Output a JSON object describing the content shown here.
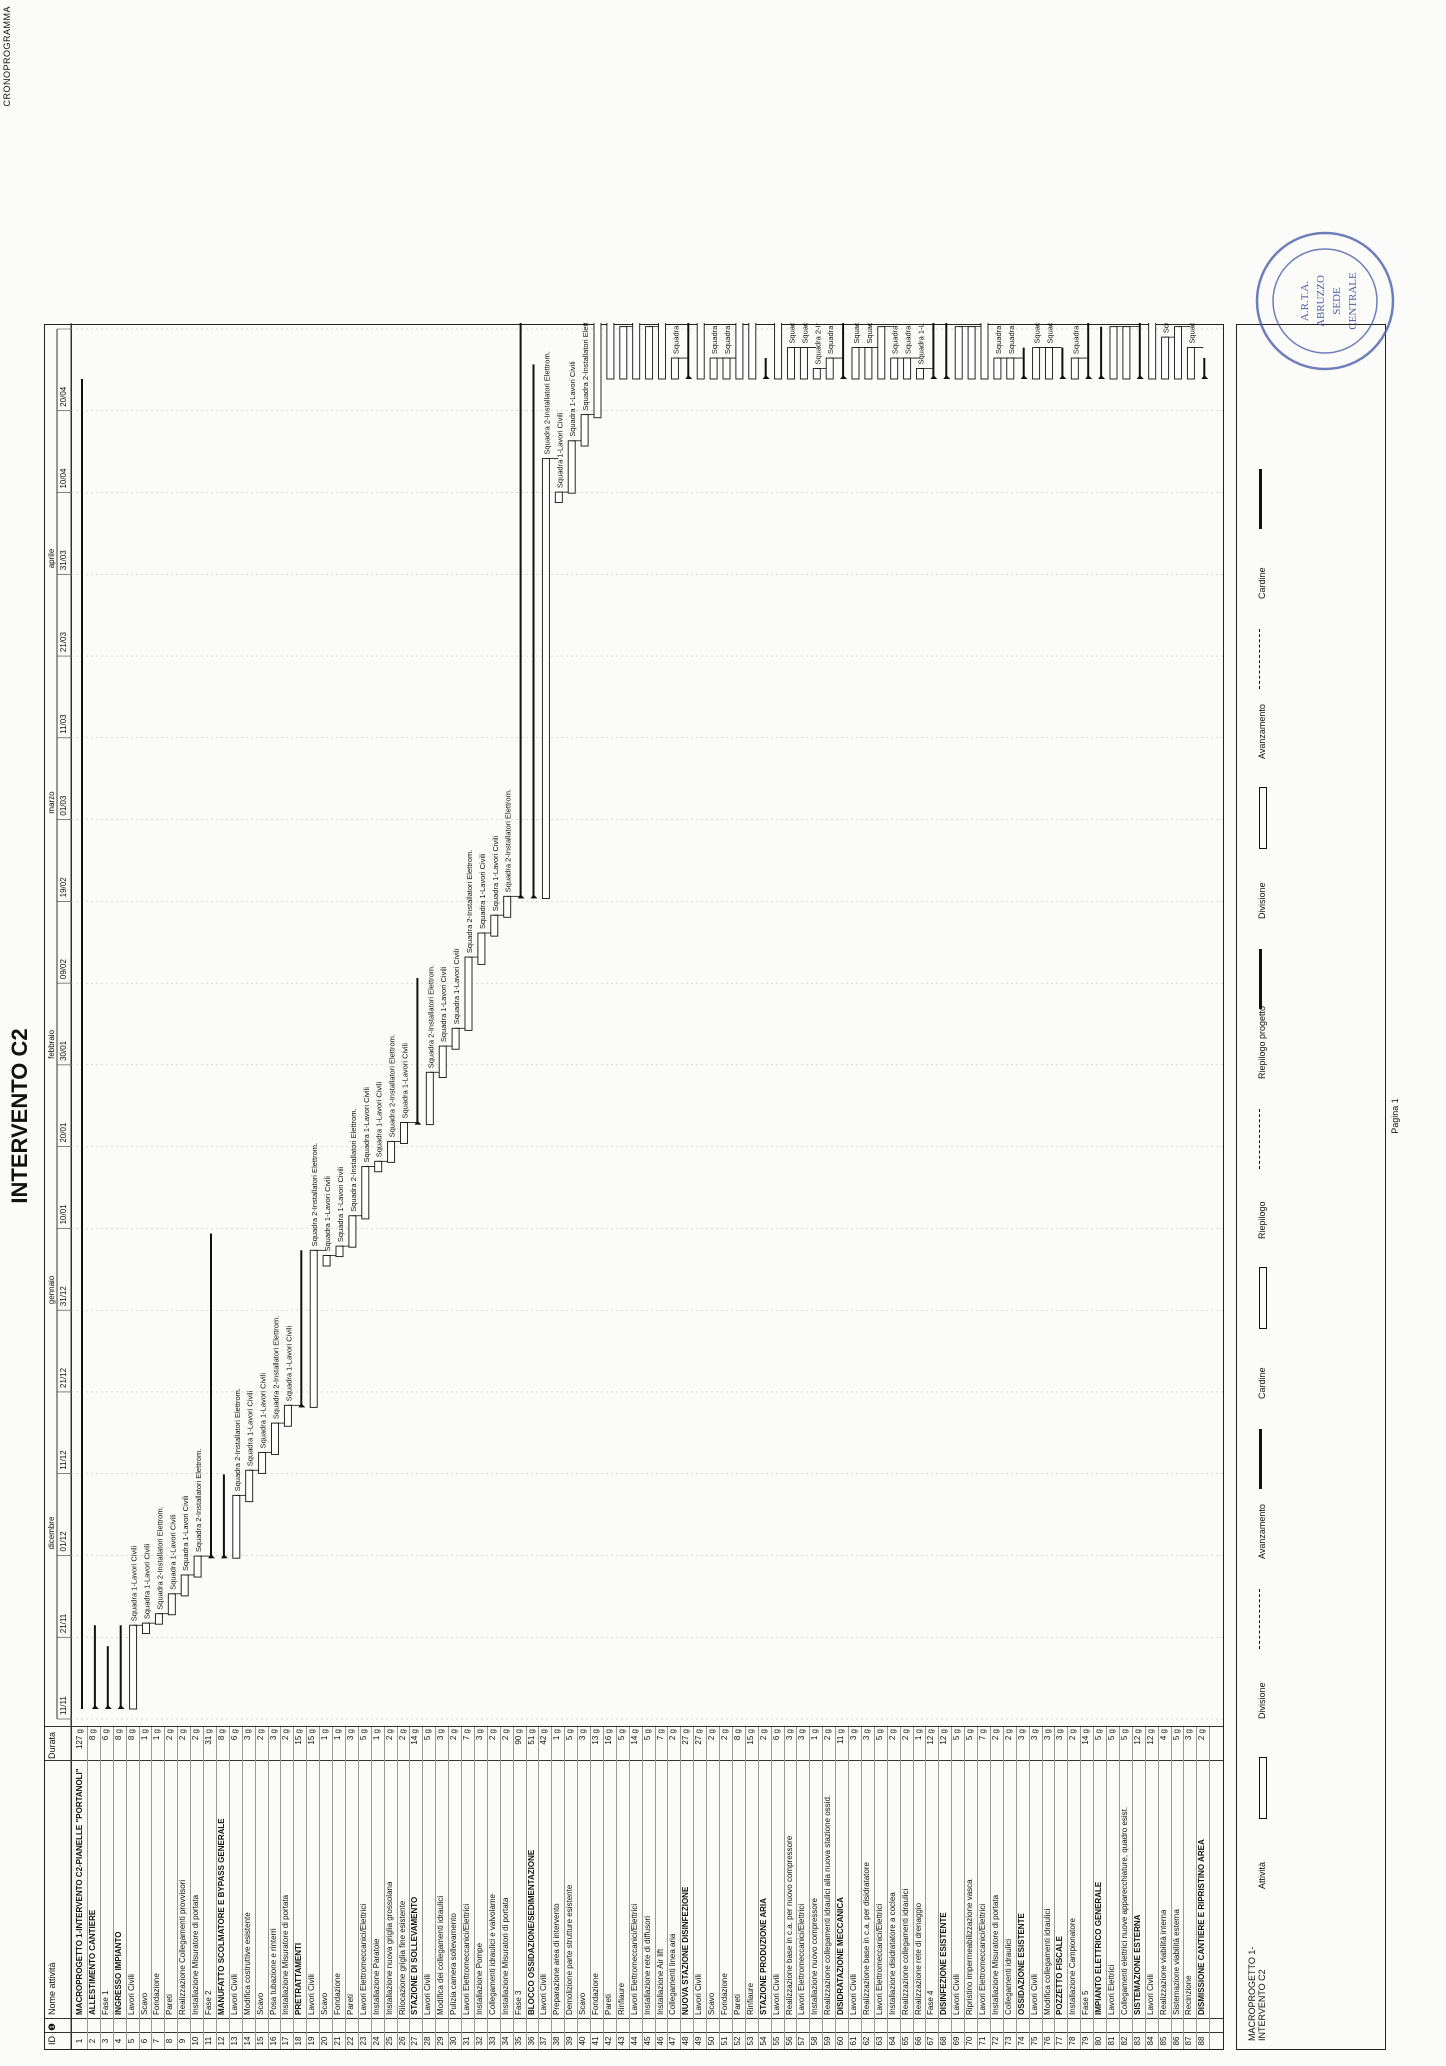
{
  "title": "INTERVENTO C2",
  "header_right": "CRONOPROGRAMMA",
  "columns": {
    "id": "ID",
    "icon": "❶",
    "name": "Nome attività",
    "duration": "Durata"
  },
  "timeline": {
    "months": [
      "dicembre",
      "gennaio",
      "febbraio",
      "marzo",
      "aprile"
    ],
    "dates": [
      "11/11",
      "21/11",
      "01/12",
      "11/12",
      "21/12",
      "31/12",
      "10/01",
      "20/01",
      "30/01",
      "09/02",
      "19/02",
      "01/03",
      "11/03",
      "21/03",
      "31/03",
      "10/04",
      "20/04"
    ]
  },
  "tasks": [
    {
      "id": "1",
      "name": "MACROPROGETTO 1-INTERVENTO C2-PIANELLE \"PORTANOLI\"",
      "dur": "127 g"
    },
    {
      "id": "2",
      "name": "ALLESTIMENTO CANTIERE",
      "dur": "8 g"
    },
    {
      "id": "3",
      "name": "Fase 1",
      "dur": "6 g"
    },
    {
      "id": "4",
      "name": "INGRESSO IMPIANTO",
      "dur": "8 g"
    },
    {
      "id": "5",
      "name": "Lavori Civili",
      "dur": "8 g"
    },
    {
      "id": "6",
      "name": "Scavo",
      "dur": "1 g"
    },
    {
      "id": "7",
      "name": "Fondazione",
      "dur": "1 g"
    },
    {
      "id": "8",
      "name": "Pareti",
      "dur": "2 g"
    },
    {
      "id": "9",
      "name": "Realizzazione Collegamenti provvisori",
      "dur": "2 g"
    },
    {
      "id": "10",
      "name": "Installazione Misuratore di portata",
      "dur": "2 g"
    },
    {
      "id": "11",
      "name": "Fase 2",
      "dur": "31 g"
    },
    {
      "id": "12",
      "name": "MANUFATTO SCOLMATORE E BYPASS GENERALE",
      "dur": "8 g"
    },
    {
      "id": "13",
      "name": "Lavori Civili",
      "dur": "6 g"
    },
    {
      "id": "14",
      "name": "Modifica costruttive esistente",
      "dur": "3 g"
    },
    {
      "id": "15",
      "name": "Scavo",
      "dur": "2 g"
    },
    {
      "id": "16",
      "name": "Posa tubazione e rinterri",
      "dur": "3 g"
    },
    {
      "id": "17",
      "name": "Installazione Misuratore di portata",
      "dur": "2 g"
    },
    {
      "id": "18",
      "name": "PRETRATTAMENTI",
      "dur": "15 g"
    },
    {
      "id": "19",
      "name": "Lavori Civili",
      "dur": "15 g"
    },
    {
      "id": "20",
      "name": "Scavo",
      "dur": "1 g"
    },
    {
      "id": "21",
      "name": "Fondazione",
      "dur": "1 g"
    },
    {
      "id": "22",
      "name": "Pareti",
      "dur": "3 g"
    },
    {
      "id": "23",
      "name": "Lavori Elettromeccanici/Elettrici",
      "dur": "5 g"
    },
    {
      "id": "24",
      "name": "Installazione Paratoie",
      "dur": "1 g"
    },
    {
      "id": "25",
      "name": "Installazione nuova griglia grossolana",
      "dur": "2 g"
    },
    {
      "id": "26",
      "name": "Rilocazione griglia fine esistente",
      "dur": "2 g"
    },
    {
      "id": "27",
      "name": "STAZIONE DI SOLLEVAMENTO",
      "dur": "14 g"
    },
    {
      "id": "28",
      "name": "Lavori Civili",
      "dur": "5 g"
    },
    {
      "id": "29",
      "name": "Modifica dei collegamenti idraulici",
      "dur": "3 g"
    },
    {
      "id": "30",
      "name": "Pulizia camera sollevamento",
      "dur": "2 g"
    },
    {
      "id": "31",
      "name": "Lavori Elettromeccanici/Elettrici",
      "dur": "7 g"
    },
    {
      "id": "32",
      "name": "Installazione Pompe",
      "dur": "3 g"
    },
    {
      "id": "33",
      "name": "Collegamenti idraulici e valvolame",
      "dur": "2 g"
    },
    {
      "id": "34",
      "name": "Installazione Misuratori di portata",
      "dur": "2 g"
    },
    {
      "id": "35",
      "name": "Fase 3",
      "dur": "90 g"
    },
    {
      "id": "36",
      "name": "BLOCCO OSSIDAZIONE/SEDIMENTAZIONE",
      "dur": "51 g"
    },
    {
      "id": "37",
      "name": "Lavori Civili",
      "dur": "42 g"
    },
    {
      "id": "38",
      "name": "Preparazione area di intervento",
      "dur": "1 g"
    },
    {
      "id": "39",
      "name": "Demolizione parte strutture esistente",
      "dur": "5 g"
    },
    {
      "id": "40",
      "name": "Scavo",
      "dur": "3 g"
    },
    {
      "id": "41",
      "name": "Fondazione",
      "dur": "13 g"
    },
    {
      "id": "42",
      "name": "Pareti",
      "dur": "16 g"
    },
    {
      "id": "43",
      "name": "Rinfiaure",
      "dur": "5 g"
    },
    {
      "id": "44",
      "name": "Lavori Elettromeccanici/Elettrici",
      "dur": "14 g"
    },
    {
      "id": "45",
      "name": "Installazione rete di diffusori",
      "dur": "5 g"
    },
    {
      "id": "46",
      "name": "Installazione Air lift",
      "dur": "7 g"
    },
    {
      "id": "47",
      "name": "Collegamenti linea aria",
      "dur": "2 g"
    },
    {
      "id": "48",
      "name": "NUOVA STAZIONE DISINFEZIONE",
      "dur": "27 g"
    },
    {
      "id": "49",
      "name": "Lavori Civili",
      "dur": "27 g"
    },
    {
      "id": "50",
      "name": "Scavo",
      "dur": "2 g"
    },
    {
      "id": "51",
      "name": "Fondazione",
      "dur": "2 g"
    },
    {
      "id": "52",
      "name": "Pareti",
      "dur": "8 g"
    },
    {
      "id": "53",
      "name": "Rinfiaure",
      "dur": "15 g"
    },
    {
      "id": "54",
      "name": "STAZIONE PRODUZIONE ARIA",
      "dur": "2 g"
    },
    {
      "id": "55",
      "name": "Lavori Civili",
      "dur": "6 g"
    },
    {
      "id": "56",
      "name": "Realizzazione base in c.a. per nuovo compressore",
      "dur": "3 g"
    },
    {
      "id": "57",
      "name": "Lavori Elettromeccanici/Elettrici",
      "dur": "3 g"
    },
    {
      "id": "58",
      "name": "Installazione nuovo compressore",
      "dur": "1 g"
    },
    {
      "id": "59",
      "name": "Realizzazione collegamenti idraulici alla nuova stazione ossid.",
      "dur": "2 g"
    },
    {
      "id": "60",
      "name": "DISIDRATAZIONE MECCANICA",
      "dur": "11 g"
    },
    {
      "id": "61",
      "name": "Lavori Civili",
      "dur": "3 g"
    },
    {
      "id": "62",
      "name": "Realizzazione base in c.a. per disidratatore",
      "dur": "3 g"
    },
    {
      "id": "63",
      "name": "Lavori Elettromeccanici/Elettrici",
      "dur": "5 g"
    },
    {
      "id": "64",
      "name": "Installazione disidratatore a coclea",
      "dur": "2 g"
    },
    {
      "id": "65",
      "name": "Realizzazione collegamenti idraulici",
      "dur": "2 g"
    },
    {
      "id": "66",
      "name": "Realizzazione rete di drenaggio",
      "dur": "1 g"
    },
    {
      "id": "67",
      "name": "Fase 4",
      "dur": "12 g"
    },
    {
      "id": "68",
      "name": "DISINFEZIONE ESISTENTE",
      "dur": "12 g"
    },
    {
      "id": "69",
      "name": "Lavori Civili",
      "dur": "5 g"
    },
    {
      "id": "70",
      "name": "Ripristino impermeabilizzazione vasca",
      "dur": "5 g"
    },
    {
      "id": "71",
      "name": "Lavori Elettromeccanici/Elettrici",
      "dur": "7 g"
    },
    {
      "id": "72",
      "name": "Installazione Misuratore di portata",
      "dur": "2 g"
    },
    {
      "id": "73",
      "name": "Collegamenti idraulici",
      "dur": "2 g"
    },
    {
      "id": "74",
      "name": "OSSIDAZIONE ESISTENTE",
      "dur": "3 g"
    },
    {
      "id": "75",
      "name": "Lavori Civili",
      "dur": "3 g"
    },
    {
      "id": "76",
      "name": "Modifica collegamenti idraulici",
      "dur": "3 g"
    },
    {
      "id": "77",
      "name": "POZZETTO FISCALE",
      "dur": "3 g"
    },
    {
      "id": "78",
      "name": "Installazione Campionatore",
      "dur": "2 g"
    },
    {
      "id": "79",
      "name": "Fase 5",
      "dur": "14 g"
    },
    {
      "id": "80",
      "name": "IMPIANTO ELETTRICO GENERALE",
      "dur": "5 g"
    },
    {
      "id": "81",
      "name": "Lavori Elettrici",
      "dur": "5 g"
    },
    {
      "id": "82",
      "name": "Collegamenti elettrici nuove apparecchiature, quadro esist.",
      "dur": "5 g"
    },
    {
      "id": "83",
      "name": "SISTEMAZIONE ESTERNA",
      "dur": "12 g"
    },
    {
      "id": "84",
      "name": "Lavori Civili",
      "dur": "12 g"
    },
    {
      "id": "85",
      "name": "Realizzazione viabilità interna",
      "dur": "4 g"
    },
    {
      "id": "86",
      "name": "Sistemazione viabilità esterna",
      "dur": "5 g"
    },
    {
      "id": "87",
      "name": "Recinzione",
      "dur": "3 g"
    },
    {
      "id": "88",
      "name": "DISMISSIONE CANTIERE E RIPRISTINO AREA",
      "dur": "2 g"
    }
  ],
  "bar_labels": [
    "Squadra 1-Lavori Civili",
    "Squadra 2-Installatori Elettrom."
  ],
  "legend": {
    "project_label": "MACROPROGETTO 1-INTERVENTO C2",
    "items": [
      "Attività",
      "Divisione",
      "Avanzamento",
      "Cardine",
      "Riepilogo",
      "Riepilogo progetto",
      "Divisione",
      "Avanzamento",
      "Cardine"
    ],
    "page": "Pagina 1"
  },
  "stamp": {
    "line1": "A.R.T.A.",
    "line2": "ABRUZZO",
    "line3": "SEDE",
    "line4": "CENTRALE"
  },
  "colors": {
    "ink": "#111111",
    "grid": "#b9b9b9",
    "stamp": "#4a5fa8"
  }
}
